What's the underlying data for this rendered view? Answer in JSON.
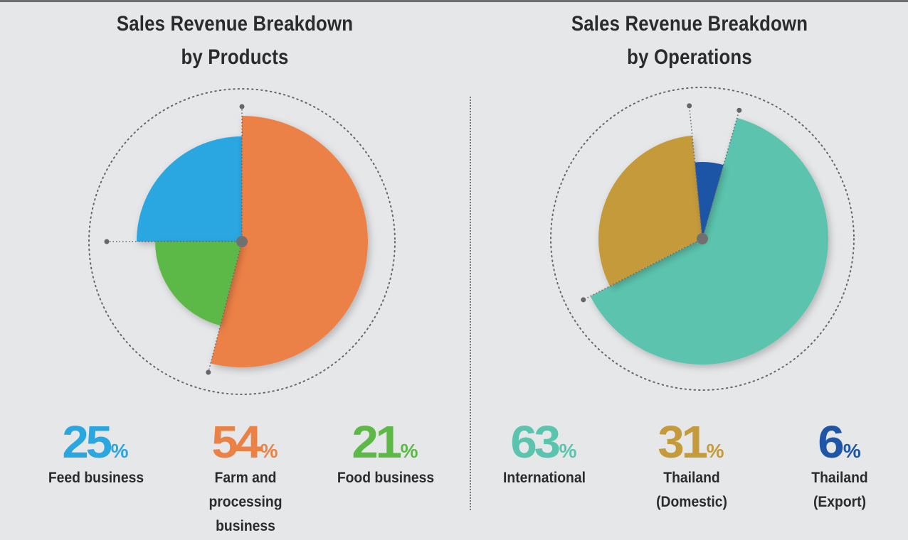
{
  "chart_data": [
    {
      "type": "pie",
      "title_lines": [
        "Sales Revenue Breakdown",
        "by Products"
      ],
      "slices": [
        {
          "label": "Feed business",
          "value": 25,
          "color": "#2aa6e0"
        },
        {
          "label_lines": [
            "Farm and",
            "processing",
            "business"
          ],
          "value": 54,
          "color": "#ec8146"
        },
        {
          "label": "Food business",
          "value": 21,
          "color": "#5db946"
        }
      ],
      "percent_sign": "%"
    },
    {
      "type": "pie",
      "title_lines": [
        "Sales Revenue Breakdown",
        "by Operations"
      ],
      "slices": [
        {
          "label": "International",
          "value": 63,
          "color": "#5bc4ae"
        },
        {
          "label_lines": [
            "Thailand",
            "(Domestic)"
          ],
          "value": 31,
          "color": "#c49a3a"
        },
        {
          "label_lines": [
            "Thailand",
            "(Export)"
          ],
          "value": 6,
          "color": "#1f55a6"
        }
      ],
      "percent_sign": "%"
    }
  ]
}
